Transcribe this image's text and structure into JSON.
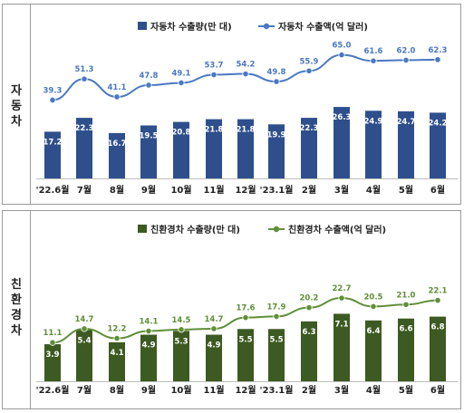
{
  "sections": [
    {
      "side_label": "자동차",
      "legend": {
        "bar": "자동차 수출량(만 대)",
        "line": "자동차 수출액(억 달러)"
      }
    },
    {
      "side_label": "친환경차",
      "legend": {
        "bar": "친환경차 수출량(만 대)",
        "line": "친환경차 수출액(억 달러)"
      }
    }
  ],
  "chart_data": [
    {
      "type": "bar",
      "categories": [
        "'22.6월",
        "7월",
        "8월",
        "9월",
        "10월",
        "11월",
        "12월",
        "'23.1월",
        "2월",
        "3월",
        "4월",
        "5월",
        "6월"
      ],
      "series": [
        {
          "name": "자동차 수출량(만 대)",
          "type": "bar",
          "values": [
            17.2,
            22.3,
            16.7,
            19.5,
            20.8,
            21.8,
            21.8,
            19.9,
            22.3,
            26.3,
            24.9,
            24.7,
            24.2
          ]
        },
        {
          "name": "자동차 수출액(억 달러)",
          "type": "line",
          "values": [
            39.3,
            51.3,
            41.1,
            47.8,
            49.1,
            53.7,
            54.2,
            49.8,
            55.9,
            65.0,
            61.6,
            62.0,
            62.3
          ]
        }
      ],
      "legend_position": "top-right",
      "colors": {
        "bar": "#2e4f8c",
        "line": "#4a78c2"
      }
    },
    {
      "type": "bar",
      "categories": [
        "'22.6월",
        "7월",
        "8월",
        "9월",
        "10월",
        "11월",
        "12월",
        "'23.1월",
        "2월",
        "3월",
        "4월",
        "5월",
        "6월"
      ],
      "series": [
        {
          "name": "친환경차 수출량(만 대)",
          "type": "bar",
          "values": [
            3.9,
            5.4,
            4.1,
            4.9,
            5.3,
            4.9,
            5.5,
            5.5,
            6.3,
            7.1,
            6.4,
            6.6,
            6.8
          ]
        },
        {
          "name": "친환경차 수출액(억 달러)",
          "type": "line",
          "values": [
            11.1,
            14.7,
            12.2,
            14.1,
            14.5,
            14.7,
            17.6,
            17.9,
            20.2,
            22.7,
            20.5,
            21.0,
            22.1
          ]
        }
      ],
      "legend_position": "top-right",
      "colors": {
        "bar": "#3c5a21",
        "line": "#5f8f38"
      }
    }
  ]
}
